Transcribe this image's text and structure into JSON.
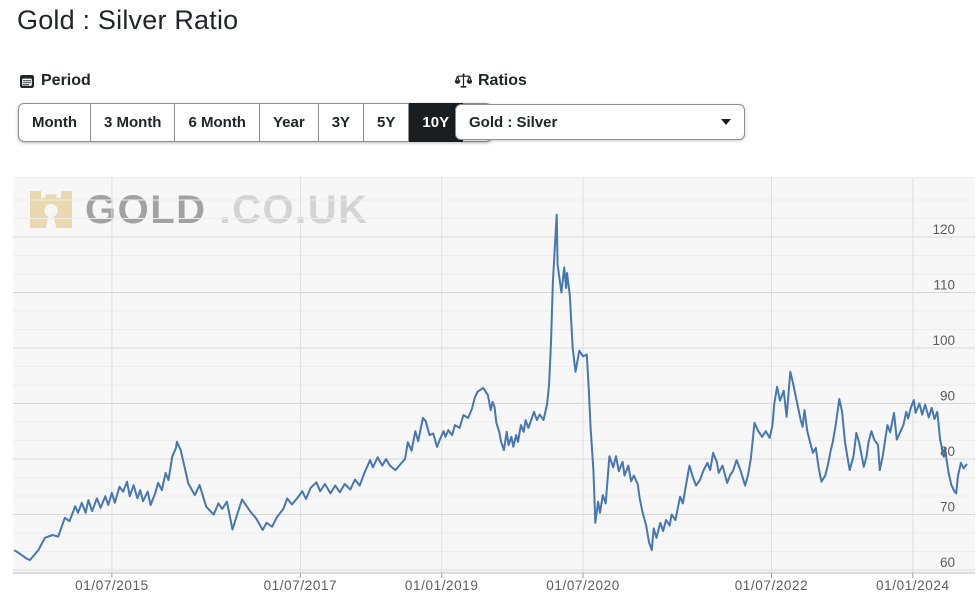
{
  "page": {
    "title": "Gold : Silver Ratio"
  },
  "controls": {
    "period": {
      "label": "Period",
      "icon": "calendar-icon",
      "options": [
        "Month",
        "3 Month",
        "6 Month",
        "Year",
        "3Y",
        "5Y",
        "10Y"
      ],
      "active": "10Y"
    },
    "ratios": {
      "label": "Ratios",
      "icon": "scales-icon",
      "selected": "Gold : Silver"
    }
  },
  "watermark": {
    "icon": "castle-icon",
    "text_primary": "GOLD",
    "text_secondary": ".CO.UK"
  },
  "colors": {
    "line": "#4677b2",
    "plot_background": "#f7f7f7",
    "grid_major": "#d8d8d8",
    "grid_minor": "#ededed",
    "grid_vertical": "#dedede",
    "axis_line": "#bdbdbd",
    "axis_text": "#5c5c5c",
    "active_button_bg": "#1b1e21",
    "watermark_icon": "#ead9ae"
  },
  "chart_data": {
    "type": "line",
    "title": "Gold : Silver Ratio",
    "series_name": "Gold : Silver",
    "legend": false,
    "grid": true,
    "x_axis": {
      "range": [
        2014.45,
        2024.66
      ],
      "ticks": [
        {
          "label": "01/07/2015",
          "year": 2015.5
        },
        {
          "label": "01/07/2017",
          "year": 2017.5
        },
        {
          "label": "01/01/2019",
          "year": 2019.0
        },
        {
          "label": "01/07/2020",
          "year": 2020.5
        },
        {
          "label": "01/07/2022",
          "year": 2022.5
        },
        {
          "label": "01/01/2024",
          "year": 2024.0
        }
      ]
    },
    "y_axis": {
      "side": "right",
      "range": [
        59.46,
        130.8
      ],
      "ticks": [
        60,
        70,
        80,
        90,
        100,
        110,
        120
      ],
      "minor_step": 3.3333
    },
    "points": [
      [
        2014.47,
        63.5
      ],
      [
        2014.5,
        63.2
      ],
      [
        2014.6,
        62.0
      ],
      [
        2014.63,
        61.8
      ],
      [
        2014.72,
        63.6
      ],
      [
        2014.79,
        65.8
      ],
      [
        2014.87,
        66.3
      ],
      [
        2014.93,
        66.0
      ],
      [
        2015.0,
        69.4
      ],
      [
        2015.05,
        68.8
      ],
      [
        2015.11,
        71.5
      ],
      [
        2015.14,
        70.3
      ],
      [
        2015.18,
        72.1
      ],
      [
        2015.22,
        70.3
      ],
      [
        2015.25,
        72.6
      ],
      [
        2015.29,
        70.6
      ],
      [
        2015.34,
        72.9
      ],
      [
        2015.38,
        71.2
      ],
      [
        2015.43,
        73.3
      ],
      [
        2015.46,
        71.7
      ],
      [
        2015.5,
        73.9
      ],
      [
        2015.53,
        72.1
      ],
      [
        2015.58,
        75.0
      ],
      [
        2015.62,
        74.1
      ],
      [
        2015.66,
        75.9
      ],
      [
        2015.69,
        73.3
      ],
      [
        2015.73,
        75.3
      ],
      [
        2015.77,
        72.9
      ],
      [
        2015.8,
        74.4
      ],
      [
        2015.83,
        72.4
      ],
      [
        2015.88,
        74.1
      ],
      [
        2015.91,
        71.7
      ],
      [
        2015.96,
        73.9
      ],
      [
        2015.99,
        75.7
      ],
      [
        2016.03,
        74.4
      ],
      [
        2016.07,
        77.5
      ],
      [
        2016.1,
        76.2
      ],
      [
        2016.14,
        80.4
      ],
      [
        2016.18,
        82.0
      ],
      [
        2016.19,
        83.1
      ],
      [
        2016.23,
        81.6
      ],
      [
        2016.26,
        79.4
      ],
      [
        2016.31,
        75.6
      ],
      [
        2016.38,
        73.5
      ],
      [
        2016.43,
        75.3
      ],
      [
        2016.5,
        71.4
      ],
      [
        2016.58,
        70.0
      ],
      [
        2016.63,
        72.0
      ],
      [
        2016.67,
        71.0
      ],
      [
        2016.72,
        72.3
      ],
      [
        2016.78,
        67.3
      ],
      [
        2016.83,
        70.0
      ],
      [
        2016.88,
        72.7
      ],
      [
        2016.93,
        71.5
      ],
      [
        2016.97,
        70.5
      ],
      [
        2017.03,
        69.3
      ],
      [
        2017.1,
        67.2
      ],
      [
        2017.14,
        68.5
      ],
      [
        2017.2,
        67.8
      ],
      [
        2017.25,
        69.5
      ],
      [
        2017.32,
        71.0
      ],
      [
        2017.36,
        72.9
      ],
      [
        2017.41,
        71.8
      ],
      [
        2017.47,
        73.0
      ],
      [
        2017.52,
        74.2
      ],
      [
        2017.56,
        72.8
      ],
      [
        2017.61,
        74.8
      ],
      [
        2017.67,
        75.8
      ],
      [
        2017.71,
        74.2
      ],
      [
        2017.76,
        75.5
      ],
      [
        2017.82,
        73.8
      ],
      [
        2017.87,
        75.2
      ],
      [
        2017.92,
        74.0
      ],
      [
        2017.97,
        75.5
      ],
      [
        2018.03,
        74.5
      ],
      [
        2018.08,
        76.3
      ],
      [
        2018.13,
        75.2
      ],
      [
        2018.18,
        77.5
      ],
      [
        2018.24,
        79.8
      ],
      [
        2018.27,
        78.5
      ],
      [
        2018.32,
        80.3
      ],
      [
        2018.37,
        78.8
      ],
      [
        2018.41,
        80.0
      ],
      [
        2018.45,
        78.8
      ],
      [
        2018.51,
        78.0
      ],
      [
        2018.56,
        79.0
      ],
      [
        2018.61,
        80.0
      ],
      [
        2018.64,
        83.0
      ],
      [
        2018.68,
        81.5
      ],
      [
        2018.72,
        85.0
      ],
      [
        2018.75,
        83.2
      ],
      [
        2018.8,
        87.4
      ],
      [
        2018.83,
        86.8
      ],
      [
        2018.87,
        84.3
      ],
      [
        2018.91,
        84.6
      ],
      [
        2018.95,
        82.2
      ],
      [
        2018.98,
        83.5
      ],
      [
        2019.02,
        85.0
      ],
      [
        2019.04,
        84.0
      ],
      [
        2019.07,
        85.2
      ],
      [
        2019.11,
        84.3
      ],
      [
        2019.14,
        86.1
      ],
      [
        2019.19,
        85.6
      ],
      [
        2019.23,
        87.9
      ],
      [
        2019.28,
        87.4
      ],
      [
        2019.32,
        89.0
      ],
      [
        2019.35,
        91.0
      ],
      [
        2019.38,
        92.1
      ],
      [
        2019.44,
        92.8
      ],
      [
        2019.49,
        91.5
      ],
      [
        2019.52,
        88.8
      ],
      [
        2019.54,
        90.3
      ],
      [
        2019.56,
        89.4
      ],
      [
        2019.58,
        86.5
      ],
      [
        2019.61,
        84.9
      ],
      [
        2019.63,
        83.1
      ],
      [
        2019.66,
        81.6
      ],
      [
        2019.69,
        84.9
      ],
      [
        2019.71,
        82.5
      ],
      [
        2019.74,
        84.0
      ],
      [
        2019.76,
        82.2
      ],
      [
        2019.79,
        84.3
      ],
      [
        2019.81,
        83.1
      ],
      [
        2019.84,
        86.1
      ],
      [
        2019.87,
        84.9
      ],
      [
        2019.89,
        87.0
      ],
      [
        2019.92,
        85.6
      ],
      [
        2019.95,
        87.0
      ],
      [
        2019.98,
        88.5
      ],
      [
        2020.01,
        87.0
      ],
      [
        2020.04,
        88.0
      ],
      [
        2020.08,
        87.0
      ],
      [
        2020.12,
        90.0
      ],
      [
        2020.14,
        93.5
      ],
      [
        2020.16,
        101.0
      ],
      [
        2020.18,
        112.0
      ],
      [
        2020.22,
        124.0
      ],
      [
        2020.23,
        115.0
      ],
      [
        2020.27,
        110.0
      ],
      [
        2020.3,
        114.5
      ],
      [
        2020.32,
        110.8
      ],
      [
        2020.33,
        113.5
      ],
      [
        2020.36,
        109.5
      ],
      [
        2020.39,
        100.0
      ],
      [
        2020.42,
        95.7
      ],
      [
        2020.46,
        99.5
      ],
      [
        2020.5,
        98.5
      ],
      [
        2020.54,
        98.8
      ],
      [
        2020.56,
        92.8
      ],
      [
        2020.58,
        85.6
      ],
      [
        2020.61,
        78.0
      ],
      [
        2020.63,
        68.5
      ],
      [
        2020.66,
        72.3
      ],
      [
        2020.68,
        70.3
      ],
      [
        2020.71,
        73.5
      ],
      [
        2020.74,
        72.0
      ],
      [
        2020.78,
        80.5
      ],
      [
        2020.82,
        78.5
      ],
      [
        2020.85,
        80.5
      ],
      [
        2020.88,
        77.8
      ],
      [
        2020.92,
        79.5
      ],
      [
        2020.94,
        77.0
      ],
      [
        2020.98,
        78.8
      ],
      [
        2021.01,
        76.0
      ],
      [
        2021.04,
        77.0
      ],
      [
        2021.08,
        75.5
      ],
      [
        2021.1,
        73.0
      ],
      [
        2021.13,
        70.5
      ],
      [
        2021.17,
        68.0
      ],
      [
        2021.2,
        65.0
      ],
      [
        2021.23,
        63.6
      ],
      [
        2021.25,
        67.5
      ],
      [
        2021.28,
        65.8
      ],
      [
        2021.32,
        68.5
      ],
      [
        2021.35,
        67.0
      ],
      [
        2021.38,
        69.0
      ],
      [
        2021.42,
        68.0
      ],
      [
        2021.44,
        70.0
      ],
      [
        2021.48,
        69.0
      ],
      [
        2021.51,
        71.5
      ],
      [
        2021.53,
        73.2
      ],
      [
        2021.56,
        72.0
      ],
      [
        2021.59,
        75.0
      ],
      [
        2021.63,
        78.8
      ],
      [
        2021.67,
        76.5
      ],
      [
        2021.7,
        75.2
      ],
      [
        2021.74,
        76.2
      ],
      [
        2021.78,
        78.0
      ],
      [
        2021.82,
        79.3
      ],
      [
        2021.85,
        78.0
      ],
      [
        2021.88,
        81.1
      ],
      [
        2021.92,
        79.5
      ],
      [
        2021.94,
        77.5
      ],
      [
        2021.98,
        78.8
      ],
      [
        2022.03,
        75.7
      ],
      [
        2022.06,
        77.0
      ],
      [
        2022.09,
        77.8
      ],
      [
        2022.13,
        79.8
      ],
      [
        2022.17,
        78.0
      ],
      [
        2022.22,
        75.2
      ],
      [
        2022.25,
        77.0
      ],
      [
        2022.28,
        80.0
      ],
      [
        2022.32,
        86.5
      ],
      [
        2022.36,
        85.0
      ],
      [
        2022.4,
        84.0
      ],
      [
        2022.44,
        85.0
      ],
      [
        2022.48,
        83.8
      ],
      [
        2022.51,
        86.0
      ],
      [
        2022.53,
        90.0
      ],
      [
        2022.56,
        93.0
      ],
      [
        2022.59,
        90.5
      ],
      [
        2022.63,
        92.3
      ],
      [
        2022.66,
        87.6
      ],
      [
        2022.7,
        95.7
      ],
      [
        2022.73,
        93.5
      ],
      [
        2022.75,
        91.9
      ],
      [
        2022.81,
        87.0
      ],
      [
        2022.83,
        85.8
      ],
      [
        2022.85,
        88.8
      ],
      [
        2022.88,
        85.0
      ],
      [
        2022.91,
        83.0
      ],
      [
        2022.94,
        81.1
      ],
      [
        2022.97,
        82.0
      ],
      [
        2023.0,
        78.5
      ],
      [
        2023.03,
        75.9
      ],
      [
        2023.07,
        77.0
      ],
      [
        2023.1,
        79.0
      ],
      [
        2023.13,
        81.6
      ],
      [
        2023.15,
        83.0
      ],
      [
        2023.18,
        86.0
      ],
      [
        2023.22,
        90.8
      ],
      [
        2023.25,
        88.5
      ],
      [
        2023.28,
        83.0
      ],
      [
        2023.32,
        79.0
      ],
      [
        2023.33,
        78.0
      ],
      [
        2023.37,
        80.5
      ],
      [
        2023.4,
        84.7
      ],
      [
        2023.43,
        83.0
      ],
      [
        2023.48,
        78.6
      ],
      [
        2023.51,
        80.5
      ],
      [
        2023.53,
        83.0
      ],
      [
        2023.56,
        85.0
      ],
      [
        2023.59,
        83.5
      ],
      [
        2023.63,
        82.5
      ],
      [
        2023.65,
        78.0
      ],
      [
        2023.68,
        80.5
      ],
      [
        2023.73,
        86.1
      ],
      [
        2023.76,
        84.8
      ],
      [
        2023.8,
        88.3
      ],
      [
        2023.83,
        83.5
      ],
      [
        2023.87,
        85.0
      ],
      [
        2023.9,
        86.1
      ],
      [
        2023.93,
        88.5
      ],
      [
        2023.95,
        87.3
      ],
      [
        2023.98,
        89.3
      ],
      [
        2024.01,
        90.6
      ],
      [
        2024.03,
        88.3
      ],
      [
        2024.07,
        90.0
      ],
      [
        2024.1,
        88.0
      ],
      [
        2024.13,
        89.8
      ],
      [
        2024.17,
        87.5
      ],
      [
        2024.2,
        89.2
      ],
      [
        2024.23,
        87.2
      ],
      [
        2024.26,
        88.5
      ],
      [
        2024.29,
        83.5
      ],
      [
        2024.33,
        80.4
      ],
      [
        2024.34,
        82.0
      ],
      [
        2024.38,
        77.5
      ],
      [
        2024.41,
        75.3
      ],
      [
        2024.44,
        74.2
      ],
      [
        2024.46,
        73.8
      ],
      [
        2024.48,
        77.0
      ],
      [
        2024.51,
        79.3
      ],
      [
        2024.54,
        78.3
      ],
      [
        2024.57,
        79.0
      ]
    ]
  }
}
